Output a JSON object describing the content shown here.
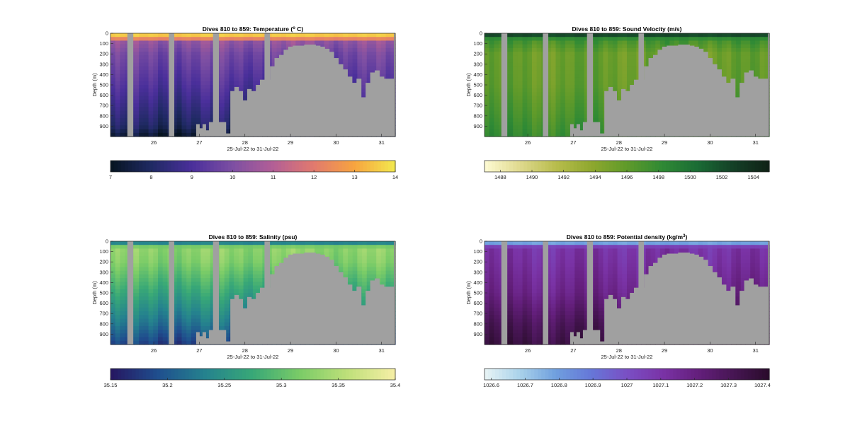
{
  "figure": {
    "background": "#ffffff",
    "mask_color": "#a0a0a0"
  },
  "chart_data": [
    {
      "type": "heatmap",
      "id": "temperature",
      "title": "Dives 810 to 859: Temperature (",
      "title_sup": "o",
      "title_suffix": " C)",
      "ylabel": "Depth (m)",
      "xlabel": "25-Jul-22 to 31-Jul-22",
      "x_ticks": [
        "26",
        "27",
        "28",
        "29",
        "30",
        "31"
      ],
      "x_range": [
        25.05,
        31.3
      ],
      "y_ticks": [
        "0",
        "100",
        "200",
        "300",
        "400",
        "500",
        "600",
        "700",
        "800",
        "900"
      ],
      "y_range": [
        0,
        1000
      ],
      "y_reversed": true,
      "colorbar": {
        "ticks": [
          "7",
          "8",
          "9",
          "10",
          "11",
          "12",
          "13",
          "14"
        ],
        "range": [
          7,
          14
        ],
        "colors": [
          "#06131f",
          "#1f2a63",
          "#4a2f9b",
          "#7d4fa3",
          "#b35f96",
          "#e27a6e",
          "#f7a43f",
          "#f2e94e"
        ]
      },
      "profile": {
        "depths": [
          0,
          40,
          80,
          200,
          500,
          900,
          1000
        ],
        "values": [
          13.8,
          13.2,
          10.4,
          9.8,
          9.1,
          8.0,
          7.2
        ]
      }
    },
    {
      "type": "heatmap",
      "id": "sound_velocity",
      "title": "Dives 810 to 859: Sound Velocity (m/s)",
      "ylabel": "Depth (m)",
      "xlabel": "25-Jul-22 to 31-Jul-22",
      "x_ticks": [
        "26",
        "27",
        "28",
        "29",
        "30",
        "31"
      ],
      "x_range": [
        25.05,
        31.3
      ],
      "y_ticks": [
        "0",
        "100",
        "200",
        "300",
        "400",
        "500",
        "600",
        "700",
        "800",
        "900"
      ],
      "y_range": [
        0,
        1000
      ],
      "y_reversed": true,
      "colorbar": {
        "ticks": [
          "1488",
          "1490",
          "1492",
          "1494",
          "1496",
          "1498",
          "1500",
          "1502",
          "1504"
        ],
        "range": [
          1487,
          1505
        ],
        "colors": [
          "#fefbd3",
          "#dfd98e",
          "#b8bd4d",
          "#8fa82e",
          "#5f9a2a",
          "#2f8a35",
          "#1a6b35",
          "#143f26",
          "#0f2116"
        ]
      },
      "profile": {
        "depths": [
          0,
          20,
          60,
          200,
          500,
          800,
          1000
        ],
        "values": [
          1504,
          1502,
          1497.5,
          1495.5,
          1495.8,
          1497.0,
          1498.0
        ]
      }
    },
    {
      "type": "heatmap",
      "id": "salinity",
      "title": "Dives 810 to 859: Salinity (psu)",
      "ylabel": "Depth (m)",
      "xlabel": "25-Jul-22 to 31-Jul-22",
      "x_ticks": [
        "26",
        "27",
        "28",
        "29",
        "30",
        "31"
      ],
      "x_range": [
        25.05,
        31.3
      ],
      "y_ticks": [
        "0",
        "100",
        "200",
        "300",
        "400",
        "500",
        "600",
        "700",
        "800",
        "900"
      ],
      "y_range": [
        0,
        1000
      ],
      "y_reversed": true,
      "colorbar": {
        "ticks": [
          "35.15",
          "35.2",
          "35.25",
          "35.3",
          "35.35",
          "35.4"
        ],
        "range": [
          35.15,
          35.4
        ],
        "colors": [
          "#261660",
          "#1f4e8e",
          "#25838e",
          "#38a877",
          "#7bcc67",
          "#bfe07a",
          "#f6efa6"
        ]
      },
      "profile": {
        "depths": [
          0,
          20,
          60,
          200,
          500,
          800,
          1000
        ],
        "values": [
          35.2,
          35.24,
          35.33,
          35.32,
          35.27,
          35.22,
          35.18
        ]
      }
    },
    {
      "type": "heatmap",
      "id": "potential_density",
      "title": "Dives 810 to 859: Potential density (kg/m",
      "title_sup": "3",
      "title_suffix": ")",
      "ylabel": "Depth (m)",
      "xlabel": "25-Jul-22 to 31-Jul-22",
      "x_ticks": [
        "26",
        "27",
        "28",
        "29",
        "30",
        "31"
      ],
      "x_range": [
        25.05,
        31.3
      ],
      "y_ticks": [
        "0",
        "100",
        "200",
        "300",
        "400",
        "500",
        "600",
        "700",
        "800",
        "900"
      ],
      "y_range": [
        0,
        1000
      ],
      "y_reversed": true,
      "colorbar": {
        "ticks": [
          "1026.6",
          "1026.7",
          "1026.8",
          "1026.9",
          "1027",
          "1027.1",
          "1027.2",
          "1027.3",
          "1027.4"
        ],
        "range": [
          1026.58,
          1027.42
        ],
        "colors": [
          "#e8f4f5",
          "#a9d2ea",
          "#6f9fde",
          "#6677d8",
          "#7a4fc4",
          "#7a33a6",
          "#641f7c",
          "#461553",
          "#2a0c2b"
        ]
      },
      "profile": {
        "depths": [
          0,
          20,
          60,
          200,
          500,
          800,
          1000
        ],
        "values": [
          1026.65,
          1026.8,
          1027.1,
          1027.12,
          1027.18,
          1027.3,
          1027.36
        ]
      }
    }
  ],
  "shared_data": {
    "gaps": [
      {
        "x_start": 25.42,
        "x_end": 25.55,
        "top_depth": 0
      },
      {
        "x_start": 26.33,
        "x_end": 26.45,
        "top_depth": 0
      },
      {
        "x_start": 27.3,
        "x_end": 27.43,
        "top_depth": 0
      },
      {
        "x_start": 28.43,
        "x_end": 28.55,
        "top_depth": 0
      }
    ],
    "bottom_steps": [
      {
        "x": 26.93,
        "depth": 880
      },
      {
        "x": 27.0,
        "depth": 920
      },
      {
        "x": 27.07,
        "depth": 880
      },
      {
        "x": 27.14,
        "depth": 940
      },
      {
        "x": 27.21,
        "depth": 860
      },
      {
        "x": 27.58,
        "depth": 970
      },
      {
        "x": 27.68,
        "depth": 560
      },
      {
        "x": 27.77,
        "depth": 520
      },
      {
        "x": 27.86,
        "depth": 560
      },
      {
        "x": 27.95,
        "depth": 650
      },
      {
        "x": 28.05,
        "depth": 540
      },
      {
        "x": 28.14,
        "depth": 560
      },
      {
        "x": 28.24,
        "depth": 500
      },
      {
        "x": 28.33,
        "depth": 450
      },
      {
        "x": 28.55,
        "depth": 320
      },
      {
        "x": 28.65,
        "depth": 240
      },
      {
        "x": 28.75,
        "depth": 210
      },
      {
        "x": 28.85,
        "depth": 160
      },
      {
        "x": 28.95,
        "depth": 130
      },
      {
        "x": 29.05,
        "depth": 120
      },
      {
        "x": 29.3,
        "depth": 110
      },
      {
        "x": 29.55,
        "depth": 120
      },
      {
        "x": 29.65,
        "depth": 130
      },
      {
        "x": 29.75,
        "depth": 150
      },
      {
        "x": 29.85,
        "depth": 180
      },
      {
        "x": 29.95,
        "depth": 240
      },
      {
        "x": 30.05,
        "depth": 300
      },
      {
        "x": 30.15,
        "depth": 350
      },
      {
        "x": 30.25,
        "depth": 420
      },
      {
        "x": 30.35,
        "depth": 480
      },
      {
        "x": 30.45,
        "depth": 440
      },
      {
        "x": 30.55,
        "depth": 620
      },
      {
        "x": 30.65,
        "depth": 480
      },
      {
        "x": 30.75,
        "depth": 380
      },
      {
        "x": 30.85,
        "depth": 360
      },
      {
        "x": 30.95,
        "depth": 420
      },
      {
        "x": 31.05,
        "depth": 440
      }
    ]
  }
}
